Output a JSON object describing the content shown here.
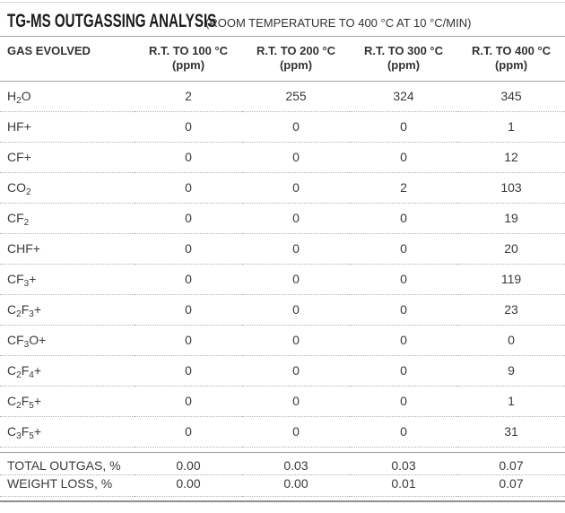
{
  "header": {
    "title": "TG-MS OUTGASSING ANALYSIS",
    "subtitle": "(ROOM TEMPERATURE TO 400 °C AT 10 °C/MIN)"
  },
  "table": {
    "gas_column_header": "GAS EVOLVED",
    "columns": [
      {
        "label": "R.T. TO 100 °C",
        "unit": "(ppm)"
      },
      {
        "label": "R.T. TO 200 °C",
        "unit": "(ppm)"
      },
      {
        "label": "R.T. TO 300 °C",
        "unit": "(ppm)"
      },
      {
        "label": "R.T. TO 400 °C",
        "unit": "(ppm)"
      }
    ],
    "rows": [
      {
        "gas": "H₂O",
        "values": [
          "2",
          "255",
          "324",
          "345"
        ]
      },
      {
        "gas": "HF+",
        "values": [
          "0",
          "0",
          "0",
          "1"
        ]
      },
      {
        "gas": "CF+",
        "values": [
          "0",
          "0",
          "0",
          "12"
        ]
      },
      {
        "gas": "CO₂",
        "values": [
          "0",
          "0",
          "2",
          "103"
        ]
      },
      {
        "gas": "CF₂",
        "values": [
          "0",
          "0",
          "0",
          "19"
        ]
      },
      {
        "gas": "CHF+",
        "values": [
          "0",
          "0",
          "0",
          "20"
        ]
      },
      {
        "gas": "CF₃+",
        "values": [
          "0",
          "0",
          "0",
          "119"
        ]
      },
      {
        "gas": "C₂F₃+",
        "values": [
          "0",
          "0",
          "0",
          "23"
        ]
      },
      {
        "gas": "CF₃O+",
        "values": [
          "0",
          "0",
          "0",
          "0"
        ]
      },
      {
        "gas": "C₂F₄+",
        "values": [
          "0",
          "0",
          "0",
          "9"
        ]
      },
      {
        "gas": "C₂F₅+",
        "values": [
          "0",
          "0",
          "0",
          "1"
        ]
      },
      {
        "gas": "C₃F₅+",
        "values": [
          "0",
          "0",
          "0",
          "31"
        ]
      }
    ],
    "summary_rows": [
      {
        "label": "TOTAL OUTGAS, %",
        "values": [
          "0.00",
          "0.03",
          "0.03",
          "0.07"
        ]
      },
      {
        "label": "WEIGHT LOSS, %",
        "values": [
          "0.00",
          "0.00",
          "0.01",
          "0.07"
        ]
      }
    ]
  },
  "colors": {
    "text": "#333333",
    "title_text": "#1c1c1c",
    "solid_rule": "#a3a3a3",
    "dotted_rule": "#b2b2b2",
    "top_rule": "#d6d6d6",
    "bottom_rule": "#8f8f8f"
  }
}
